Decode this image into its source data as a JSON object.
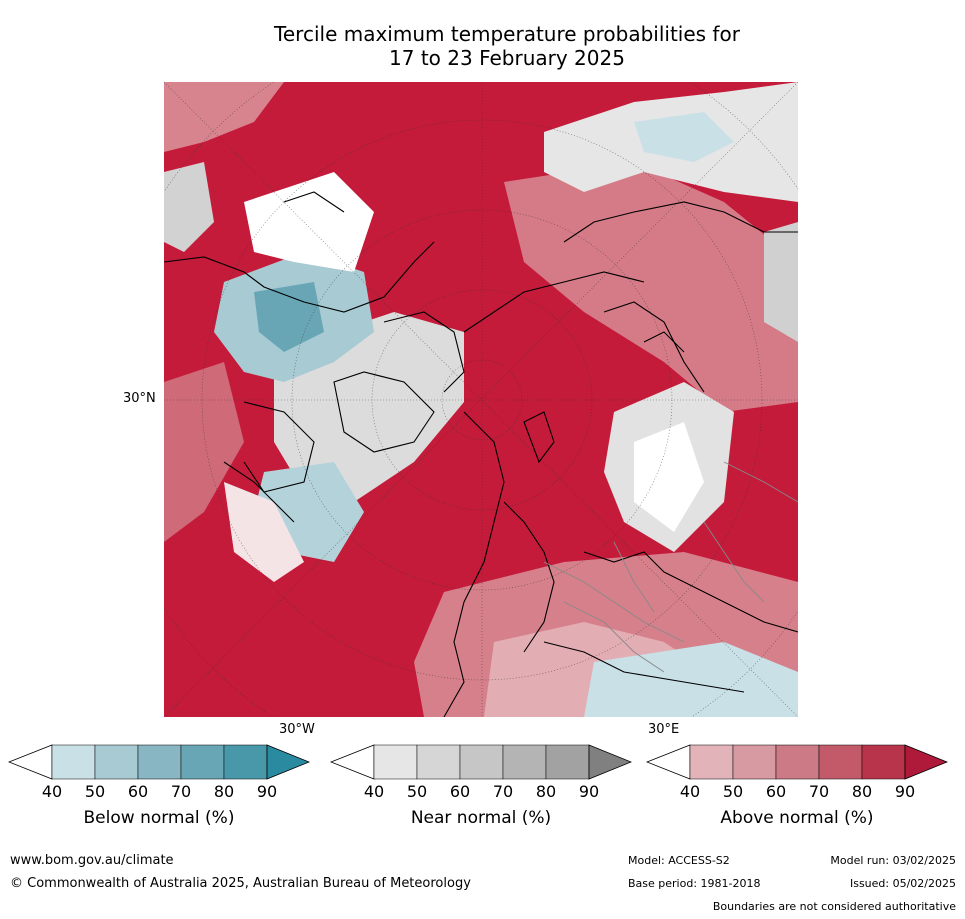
{
  "title_line1": "Tercile maximum temperature probabilities for",
  "title_line2": "17 to 23 February 2025",
  "map": {
    "lat_label": "30°N",
    "lon_label_west": "30°W",
    "lon_label_east": "30°E"
  },
  "colorbars": [
    {
      "title": "Below normal (%)",
      "ticks": [
        "40",
        "50",
        "60",
        "70",
        "80",
        "90"
      ],
      "colors": [
        "#ffffff",
        "#c8e0e6",
        "#a8cad2",
        "#88b6c2",
        "#68a6b6",
        "#4898aa",
        "#2a8aa0"
      ]
    },
    {
      "title": "Near normal (%)",
      "ticks": [
        "40",
        "50",
        "60",
        "70",
        "80",
        "90"
      ],
      "colors": [
        "#ffffff",
        "#e6e6e6",
        "#d6d6d6",
        "#c6c6c6",
        "#b4b4b4",
        "#a2a2a2",
        "#808080"
      ]
    },
    {
      "title": "Above normal (%)",
      "ticks": [
        "40",
        "50",
        "60",
        "70",
        "80",
        "90"
      ],
      "colors": [
        "#ffffff",
        "#e2b4ba",
        "#d89aa2",
        "#cc7a86",
        "#c25a6a",
        "#b8344a",
        "#b01a3a"
      ]
    }
  ],
  "footer": {
    "website": "www.bom.gov.au/climate",
    "copyright": "© Commonwealth of Australia 2025, Australian Bureau of Meteorology",
    "model": "Model: ACCESS-S2",
    "model_run": "Model run: 03/02/2025",
    "base_period": "Base period: 1981-2018",
    "issued": "Issued: 05/02/2025",
    "disclaimer": "Boundaries are not considered authoritative"
  }
}
